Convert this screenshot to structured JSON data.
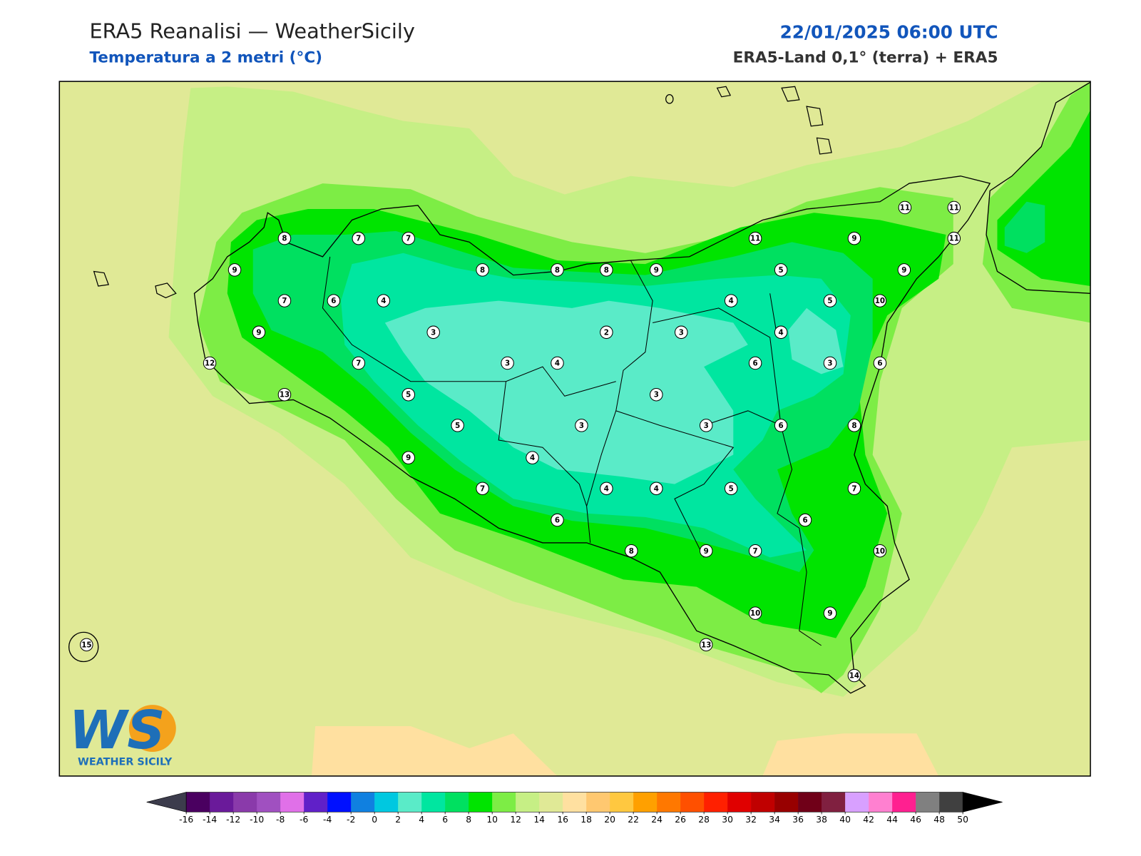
{
  "header": {
    "title": "ERA5 Reanalisi — WeatherSicily",
    "subtitle": "Temperatura a 2 metri (°C)",
    "datetime": "22/01/2025 06:00 UTC",
    "source": "ERA5-Land 0,1° (terra) + ERA5"
  },
  "map": {
    "stations": [
      8,
      7,
      7,
      9,
      8,
      8,
      8,
      9,
      11,
      9,
      11,
      11,
      11,
      9,
      5,
      7,
      6,
      4,
      4,
      5,
      10,
      9,
      3,
      2,
      3,
      4,
      12,
      7,
      3,
      4,
      6,
      3,
      6,
      13,
      5,
      3,
      5,
      3,
      3,
      6,
      8,
      9,
      4,
      7,
      4,
      4,
      5,
      7,
      6,
      6,
      8,
      9,
      7,
      10,
      10,
      9,
      13,
      14,
      15
    ]
  },
  "logo": {
    "mark": "WS",
    "text": "WEATHER SICILY"
  },
  "colorbar": {
    "ticks": [
      -16,
      -14,
      -12,
      -10,
      -8,
      -6,
      -4,
      -2,
      0,
      2,
      4,
      6,
      8,
      10,
      12,
      14,
      16,
      18,
      20,
      22,
      24,
      26,
      28,
      30,
      32,
      34,
      36,
      38,
      40,
      42,
      44,
      46,
      48,
      50
    ],
    "colors": [
      "#4a0060",
      "#6a1a9a",
      "#8a3aaa",
      "#a050c0",
      "#e070e8",
      "#6020c8",
      "#0010ff",
      "#1080e0",
      "#00c8e0",
      "#5aebc8",
      "#00e6a0",
      "#00e060",
      "#00e400",
      "#7ded45",
      "#c6ef85",
      "#e0e996",
      "#ffe0a0",
      "#ffc870",
      "#ffc840",
      "#ffa000",
      "#ff7800",
      "#ff5000",
      "#ff2000",
      "#e00000",
      "#c00000",
      "#980000",
      "#700018",
      "#802040",
      "#d8a0ff",
      "#ff80d0",
      "#ff2090",
      "#808080",
      "#404040"
    ],
    "under_color": "#3c3c4c",
    "over_color": "#000000"
  }
}
